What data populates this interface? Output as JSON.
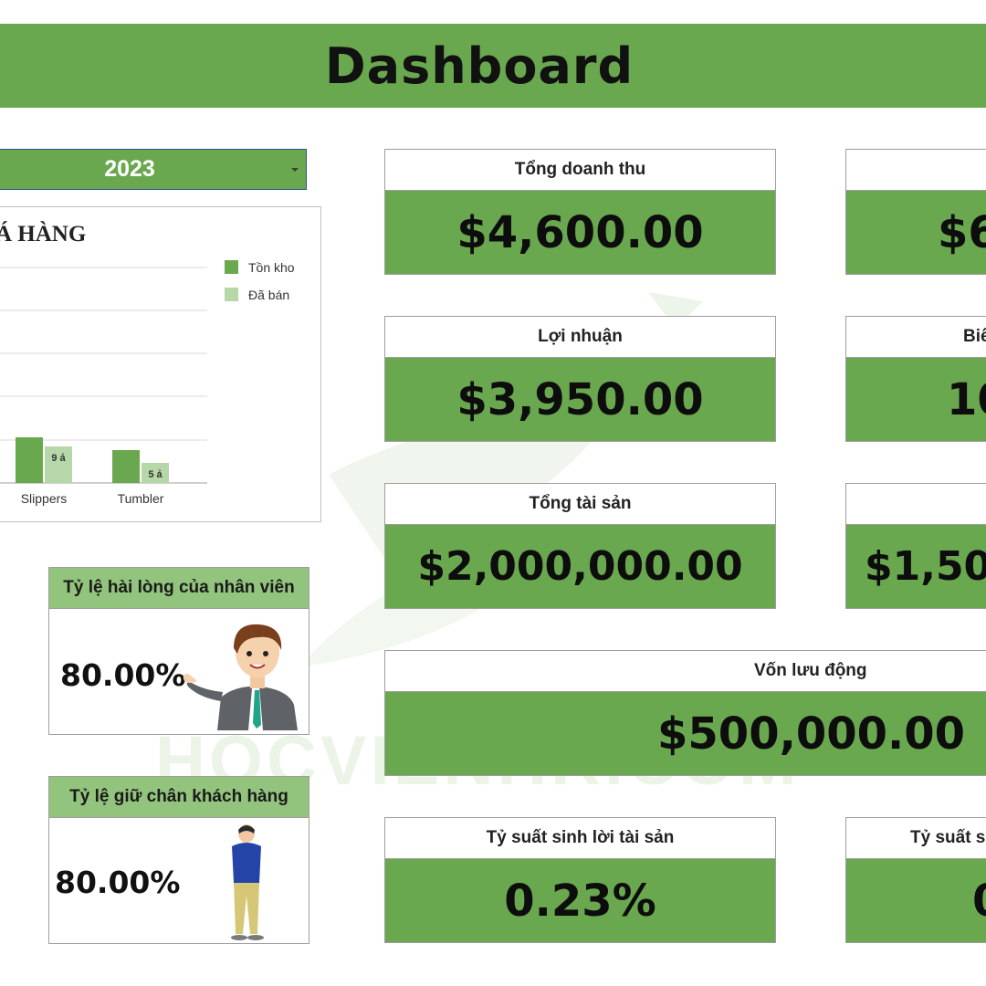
{
  "header": {
    "title": "Dashboard"
  },
  "filter": {
    "year": "2023"
  },
  "chart": {
    "title_fragment": "Á HÀNG",
    "legend": [
      {
        "label": "Tồn kho",
        "color": "#6aa84f"
      },
      {
        "label": "Đã bán",
        "color": "#b6d7a8"
      }
    ]
  },
  "chart_data": {
    "type": "bar",
    "categories": [
      "Slippers",
      "Tumbler"
    ],
    "series": [
      {
        "name": "Tồn kho",
        "values": [
          null,
          null
        ]
      },
      {
        "name": "Đã bán",
        "values": [
          9,
          5
        ]
      }
    ],
    "data_labels": [
      "9 ả",
      "5 ả"
    ],
    "grid": true,
    "legend_position": "top-right"
  },
  "kpis": {
    "revenue": {
      "label": "Tổng doanh thu",
      "value": "$4,600.00"
    },
    "top_right": {
      "label": "",
      "value": "$6"
    },
    "profit": {
      "label": "Lợi nhuận",
      "value": "$3,950.00"
    },
    "margin": {
      "label": "Biể",
      "value": "10"
    },
    "assets": {
      "label": "Tổng tài sản",
      "value": "$2,000,000.00"
    },
    "mid_right": {
      "label": "",
      "value": "$1,50"
    },
    "working_capital": {
      "label": "Vốn lưu động",
      "value": "$500,000.00"
    },
    "roa": {
      "label": "Tỷ suất sinh lời tài sản",
      "value": "0.23%"
    },
    "roe": {
      "label": "Tỷ suất s",
      "value": "0"
    }
  },
  "employee_satisfaction": {
    "label": "Tỷ lệ hài lòng của nhân viên",
    "value": "80.00%"
  },
  "customer_retention": {
    "label": "Tỷ lệ giữ chân khách hàng",
    "value": "80.00%"
  },
  "watermark": {
    "text": "HOCVIENHR.COM"
  },
  "colors": {
    "accent": "#6aa84f",
    "light_accent": "#93c47d",
    "legend_light": "#b6d7a8"
  }
}
